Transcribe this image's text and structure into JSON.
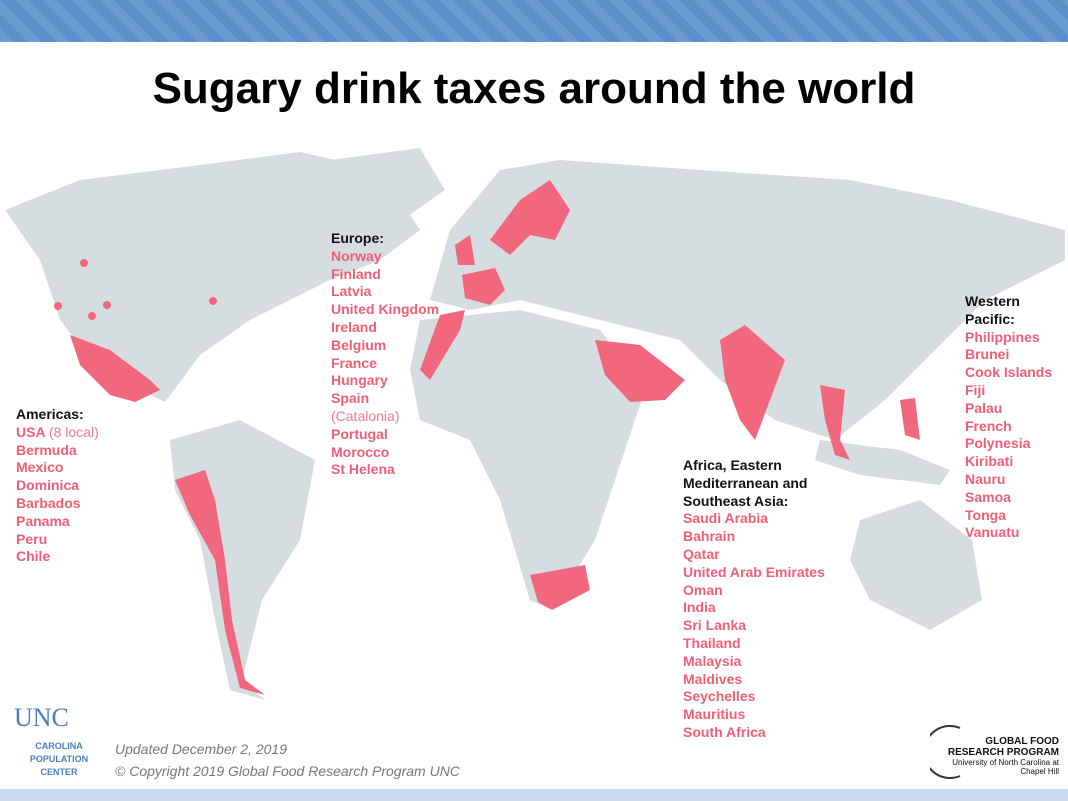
{
  "title": "Sugary drink taxes around the world",
  "regions": [
    {
      "heading": "Americas:",
      "countries": [
        {
          "name": "USA",
          "note": "(8 local)"
        },
        {
          "name": "Bermuda"
        },
        {
          "name": "Mexico"
        },
        {
          "name": "Dominica"
        },
        {
          "name": "Barbados"
        },
        {
          "name": "Panama"
        },
        {
          "name": "Peru"
        },
        {
          "name": "Chile"
        }
      ]
    },
    {
      "heading": "Europe:",
      "countries": [
        {
          "name": "Norway"
        },
        {
          "name": "Finland"
        },
        {
          "name": "Latvia"
        },
        {
          "name": "United Kingdom"
        },
        {
          "name": "Ireland"
        },
        {
          "name": "Belgium"
        },
        {
          "name": "France"
        },
        {
          "name": "Hungary"
        },
        {
          "name": "Spain",
          "note": "(Catalonia)"
        },
        {
          "name": "Portugal"
        },
        {
          "name": "Morocco"
        },
        {
          "name": "St Helena"
        }
      ]
    },
    {
      "heading": "Africa, Eastern Mediterranean and Southeast Asia:",
      "countries": [
        {
          "name": "Saudi Arabia"
        },
        {
          "name": "Bahrain"
        },
        {
          "name": "Qatar"
        },
        {
          "name": "United Arab Emirates"
        },
        {
          "name": "Oman"
        },
        {
          "name": "India"
        },
        {
          "name": "Sri Lanka"
        },
        {
          "name": "Thailand"
        },
        {
          "name": "Malaysia"
        },
        {
          "name": "Maldives"
        },
        {
          "name": "Seychelles"
        },
        {
          "name": "Mauritius"
        },
        {
          "name": "South Africa"
        }
      ]
    },
    {
      "heading": "Western Pacific:",
      "countries": [
        {
          "name": "Philippines"
        },
        {
          "name": "Brunei"
        },
        {
          "name": "Cook Islands"
        },
        {
          "name": "Fiji"
        },
        {
          "name": "Palau"
        },
        {
          "name": "French Polynesia"
        },
        {
          "name": "Kiribati"
        },
        {
          "name": "Nauru"
        },
        {
          "name": "Samoa"
        },
        {
          "name": "Tonga"
        },
        {
          "name": "Vanuatu"
        }
      ]
    }
  ],
  "footer": {
    "updated": "Updated December 2, 2019",
    "copyright": "© Copyright 2019 Global Food Research Program UNC"
  },
  "logos": {
    "unc": "UNC",
    "unc_center": "CAROLINA POPULATION CENTER",
    "gfrp": "GLOBAL FOOD RESEARCH PROGRAM",
    "gfrp_sub": "University of North Carolina at Chapel Hill"
  }
}
